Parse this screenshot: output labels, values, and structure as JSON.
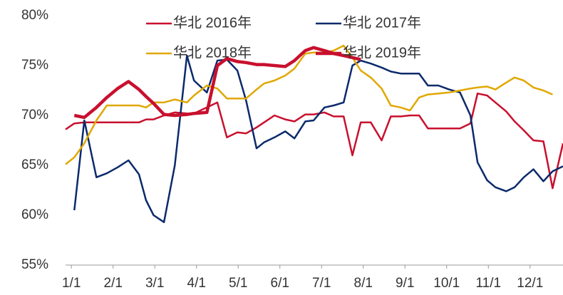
{
  "chart_data": {
    "type": "line",
    "x": [
      0.86,
      1.07,
      1.31,
      1.6,
      1.85,
      2.11,
      2.37,
      2.62,
      2.79,
      2.97,
      3.22,
      3.48,
      3.77,
      3.94,
      4.25,
      4.5,
      4.73,
      4.98,
      5.19,
      5.44,
      5.62,
      5.87,
      6.13,
      6.35,
      6.61,
      6.81,
      7.07,
      7.29,
      7.53,
      7.74,
      7.94,
      8.18,
      8.44,
      8.66,
      8.9,
      9.12,
      9.34,
      9.55,
      9.8,
      10.06,
      10.32,
      10.57,
      10.74,
      10.97,
      11.17,
      11.43,
      11.63,
      11.85,
      12.08,
      12.32,
      12.54,
      12.79
    ],
    "xlim": [
      0.86,
      12.79
    ],
    "xticks": [
      {
        "value": 1,
        "label": "1/1"
      },
      {
        "value": 2,
        "label": "2/1"
      },
      {
        "value": 3,
        "label": "3/1"
      },
      {
        "value": 4,
        "label": "4/1"
      },
      {
        "value": 5,
        "label": "5/1"
      },
      {
        "value": 6,
        "label": "6/1"
      },
      {
        "value": 7,
        "label": "7/1"
      },
      {
        "value": 8,
        "label": "8/1"
      },
      {
        "value": 9,
        "label": "9/1"
      },
      {
        "value": 10,
        "label": "10/1"
      },
      {
        "value": 11,
        "label": "11/1"
      },
      {
        "value": 12,
        "label": "12/1"
      }
    ],
    "ylim": [
      55,
      80
    ],
    "yticks": [
      {
        "value": 55,
        "label": "55%"
      },
      {
        "value": 60,
        "label": "60%"
      },
      {
        "value": 65,
        "label": "65%"
      },
      {
        "value": 70,
        "label": "70%"
      },
      {
        "value": 75,
        "label": "75%"
      },
      {
        "value": 80,
        "label": "80%"
      }
    ],
    "grid": false,
    "series": [
      {
        "name": "华北 2016年",
        "color": "#c8102e",
        "line_width": 2.5,
        "values": [
          68.6,
          69.2,
          69.3,
          69.3,
          69.3,
          69.3,
          69.3,
          69.3,
          69.6,
          69.6,
          70,
          70.3,
          70.2,
          70.2,
          70.8,
          71.3,
          67.8,
          68.3,
          68.2,
          68.8,
          69.3,
          70,
          69.6,
          69.4,
          70.1,
          70.1,
          70.3,
          69.9,
          69.9,
          66,
          69.3,
          69.3,
          67.5,
          69.9,
          69.9,
          70,
          70,
          68.7,
          68.7,
          68.7,
          68.7,
          69.2,
          72.2,
          72,
          71.3,
          70.4,
          69.4,
          68.5,
          67.5,
          67.4,
          62.7,
          67.2
        ]
      },
      {
        "name": "华北 2017年",
        "color": "#0b2a6b",
        "line_width": 2.5,
        "values": [
          null,
          60.5,
          69.5,
          63.8,
          64.2,
          64.8,
          65.5,
          64.1,
          61.5,
          60,
          59.3,
          65,
          76,
          73.5,
          72.3,
          75.5,
          75.6,
          74.5,
          71.5,
          66.7,
          67.3,
          67.8,
          68.4,
          67.7,
          69.4,
          69.5,
          70.8,
          71,
          71.3,
          75,
          75.5,
          75.2,
          74.8,
          74.4,
          74.2,
          74.2,
          74.2,
          73,
          73,
          72.6,
          72.3,
          70,
          65.3,
          63.5,
          62.8,
          62.4,
          62.8,
          63.8,
          64.6,
          63.4,
          64.4,
          64.9
        ]
      },
      {
        "name": "华北 2018年",
        "color": "#e0a800",
        "line_width": 2.5,
        "values": [
          65.1,
          65.8,
          67.2,
          69.5,
          71,
          71,
          71,
          71,
          70.8,
          71.3,
          71.3,
          71.6,
          71.3,
          72,
          73,
          72.7,
          71.7,
          71.7,
          71.7,
          72.6,
          73.2,
          73.5,
          74,
          74.7,
          76.2,
          76.3,
          76.3,
          76.5,
          77,
          75.8,
          74.5,
          73.8,
          72.7,
          71,
          70.8,
          70.5,
          71.8,
          72.1,
          72.2,
          72.3,
          72.5,
          72.7,
          72.8,
          72.9,
          72.6,
          73.3,
          73.8,
          73.5,
          72.8,
          72.5,
          72.1,
          null
        ]
      },
      {
        "name": "华北 2019年",
        "color": "#c8102e",
        "line_width": 4.5,
        "values": [
          null,
          70,
          69.8,
          70.8,
          71.8,
          72.7,
          73.4,
          72.6,
          71.9,
          71.2,
          70.1,
          70,
          70.1,
          70.2,
          70.3,
          75,
          75.7,
          75.4,
          75.3,
          75.1,
          75.1,
          75,
          74.9,
          75.5,
          76.5,
          76.8,
          76.5,
          76.2,
          76,
          75.8,
          75.6,
          null,
          null,
          null,
          null,
          null,
          null,
          null,
          null,
          null,
          null,
          null,
          null,
          null,
          null,
          null,
          null,
          null,
          null,
          null,
          null,
          null
        ]
      }
    ]
  }
}
